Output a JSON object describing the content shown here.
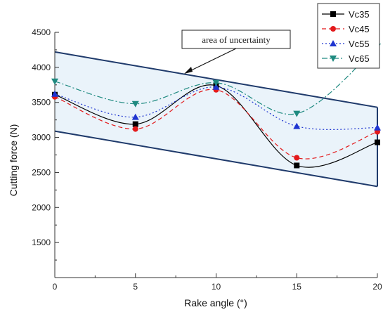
{
  "chart_data": {
    "type": "line",
    "title": "",
    "xlabel": "Rake angle (°)",
    "ylabel": "Cutting force (N)",
    "xlim": [
      0,
      20
    ],
    "ylim": [
      1000,
      4500
    ],
    "xticks": [
      0,
      5,
      10,
      15,
      20
    ],
    "yticks": [
      1500,
      2000,
      2500,
      3000,
      3500,
      4000,
      4500
    ],
    "grid": false,
    "legend_position": "top-right",
    "annotation": "area of uncertainty",
    "uncertainty_band": {
      "upper": [
        [
          0,
          4220
        ],
        [
          20,
          3430
        ]
      ],
      "lower": [
        [
          0,
          3090
        ],
        [
          20,
          2300
        ]
      ],
      "fill": "#eaf3fa",
      "stroke": "#1f3a6b"
    },
    "x": [
      0,
      5,
      10,
      15,
      20
    ],
    "series": [
      {
        "name": "Vc35",
        "values": [
          3610,
          3190,
          3740,
          2600,
          2930
        ],
        "color": "#000000",
        "marker": "square",
        "dash": ""
      },
      {
        "name": "Vc45",
        "values": [
          3580,
          3120,
          3680,
          2710,
          3080
        ],
        "color": "#e31a1c",
        "marker": "circle",
        "dash": "6,4"
      },
      {
        "name": "Vc55",
        "values": [
          3620,
          3290,
          3720,
          3160,
          3140
        ],
        "color": "#1f35d0",
        "marker": "triangle-up",
        "dash": "2,3"
      },
      {
        "name": "Vc65",
        "values": [
          3800,
          3480,
          3780,
          3340,
          4300
        ],
        "color": "#1f8a80",
        "marker": "triangle-down",
        "dash": "8,3,2,3"
      }
    ]
  }
}
